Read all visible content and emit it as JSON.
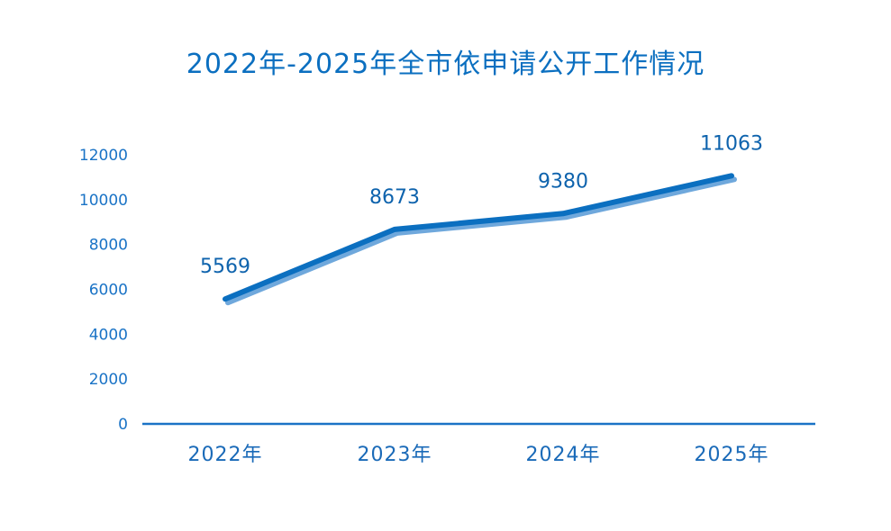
{
  "chart_data": {
    "type": "line",
    "title": "2022年-2025年全市依申请公开工作情况",
    "categories": [
      "2022年",
      "2023年",
      "2024年",
      "2025年"
    ],
    "series": [
      {
        "values": [
          5569,
          8673,
          9380,
          11063
        ]
      }
    ],
    "data_labels": [
      "5569",
      "8673",
      "9380",
      "11063"
    ],
    "y_ticks": [
      0,
      2000,
      4000,
      6000,
      8000,
      10000,
      12000
    ],
    "y_tick_labels": [
      "0",
      "2000",
      "4000",
      "6000",
      "8000",
      "10000",
      "12000"
    ],
    "ylim": [
      0,
      12000
    ],
    "grid": false,
    "legend": "none",
    "colors": {
      "line": "#0b6fc0",
      "line_shadow": "#6fa8dc",
      "axis": "#1a73c6",
      "drop_line": "#1a73c6"
    }
  }
}
